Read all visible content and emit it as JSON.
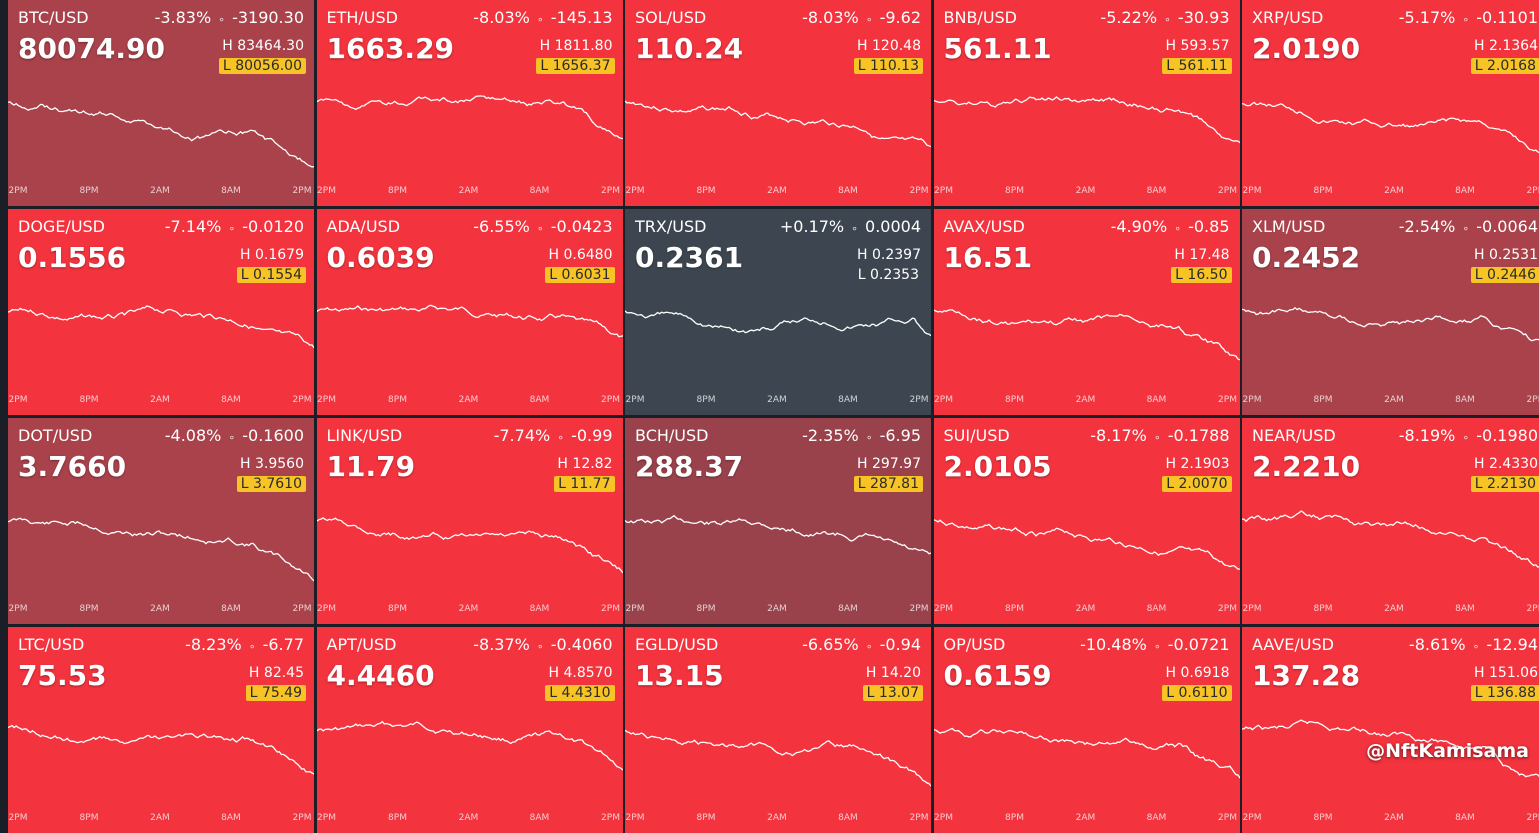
{
  "high_label": "H",
  "low_label": "L",
  "time_axis": [
    "2PM",
    "8PM",
    "2AM",
    "8AM",
    "2PM"
  ],
  "watermark": "@NftKamisama",
  "tiles": [
    {
      "symbol": "BTC/USD",
      "change_pct": "-3.83%",
      "change": "-3190.30",
      "price": "80074.90",
      "high": "83464.30",
      "low": "80056.00",
      "color": "#a9424b",
      "low_highlight": true
    },
    {
      "symbol": "ETH/USD",
      "change_pct": "-8.03%",
      "change": "-145.13",
      "price": "1663.29",
      "high": "1811.80",
      "low": "1656.37",
      "color": "#f3333e",
      "low_highlight": true
    },
    {
      "symbol": "SOL/USD",
      "change_pct": "-8.03%",
      "change": "-9.62",
      "price": "110.24",
      "high": "120.48",
      "low": "110.13",
      "color": "#f3333e",
      "low_highlight": true
    },
    {
      "symbol": "BNB/USD",
      "change_pct": "-5.22%",
      "change": "-30.93",
      "price": "561.11",
      "high": "593.57",
      "low": "561.11",
      "color": "#f3333e",
      "low_highlight": true
    },
    {
      "symbol": "XRP/USD",
      "change_pct": "-5.17%",
      "change": "-0.1101",
      "price": "2.0190",
      "high": "2.1364",
      "low": "2.0168",
      "color": "#f3333e",
      "low_highlight": true
    },
    {
      "symbol": "DOGE/USD",
      "change_pct": "-7.14%",
      "change": "-0.0120",
      "price": "0.1556",
      "high": "0.1679",
      "low": "0.1554",
      "color": "#f3333e",
      "low_highlight": true
    },
    {
      "symbol": "ADA/USD",
      "change_pct": "-6.55%",
      "change": "-0.0423",
      "price": "0.6039",
      "high": "0.6480",
      "low": "0.6031",
      "color": "#f3333e",
      "low_highlight": true
    },
    {
      "symbol": "TRX/USD",
      "change_pct": "+0.17%",
      "change": "0.0004",
      "price": "0.2361",
      "high": "0.2397",
      "low": "0.2353",
      "color": "#3d4650",
      "low_highlight": false
    },
    {
      "symbol": "AVAX/USD",
      "change_pct": "-4.90%",
      "change": "-0.85",
      "price": "16.51",
      "high": "17.48",
      "low": "16.50",
      "color": "#f3333e",
      "low_highlight": true
    },
    {
      "symbol": "XLM/USD",
      "change_pct": "-2.54%",
      "change": "-0.0064",
      "price": "0.2452",
      "high": "0.2531",
      "low": "0.2446",
      "color": "#a9424b",
      "low_highlight": true
    },
    {
      "symbol": "DOT/USD",
      "change_pct": "-4.08%",
      "change": "-0.1600",
      "price": "3.7660",
      "high": "3.9560",
      "low": "3.7610",
      "color": "#a9424b",
      "low_highlight": true
    },
    {
      "symbol": "LINK/USD",
      "change_pct": "-7.74%",
      "change": "-0.99",
      "price": "11.79",
      "high": "12.82",
      "low": "11.77",
      "color": "#f3333e",
      "low_highlight": true
    },
    {
      "symbol": "BCH/USD",
      "change_pct": "-2.35%",
      "change": "-6.95",
      "price": "288.37",
      "high": "297.97",
      "low": "287.81",
      "color": "#9a424c",
      "low_highlight": true
    },
    {
      "symbol": "SUI/USD",
      "change_pct": "-8.17%",
      "change": "-0.1788",
      "price": "2.0105",
      "high": "2.1903",
      "low": "2.0070",
      "color": "#f3333e",
      "low_highlight": true
    },
    {
      "symbol": "NEAR/USD",
      "change_pct": "-8.19%",
      "change": "-0.1980",
      "price": "2.2210",
      "high": "2.4330",
      "low": "2.2130",
      "color": "#f3333e",
      "low_highlight": true
    },
    {
      "symbol": "LTC/USD",
      "change_pct": "-8.23%",
      "change": "-6.77",
      "price": "75.53",
      "high": "82.45",
      "low": "75.49",
      "color": "#f3333e",
      "low_highlight": true
    },
    {
      "symbol": "APT/USD",
      "change_pct": "-8.37%",
      "change": "-0.4060",
      "price": "4.4460",
      "high": "4.8570",
      "low": "4.4310",
      "color": "#f3333e",
      "low_highlight": true
    },
    {
      "symbol": "EGLD/USD",
      "change_pct": "-6.65%",
      "change": "-0.94",
      "price": "13.15",
      "high": "14.20",
      "low": "13.07",
      "color": "#f3333e",
      "low_highlight": true
    },
    {
      "symbol": "OP/USD",
      "change_pct": "-10.48%",
      "change": "-0.0721",
      "price": "0.6159",
      "high": "0.6918",
      "low": "0.6110",
      "color": "#f3333e",
      "low_highlight": true
    },
    {
      "symbol": "AAVE/USD",
      "change_pct": "-8.61%",
      "change": "-12.94",
      "price": "137.28",
      "high": "151.06",
      "low": "136.88",
      "color": "#f3333e",
      "low_highlight": true
    }
  ]
}
